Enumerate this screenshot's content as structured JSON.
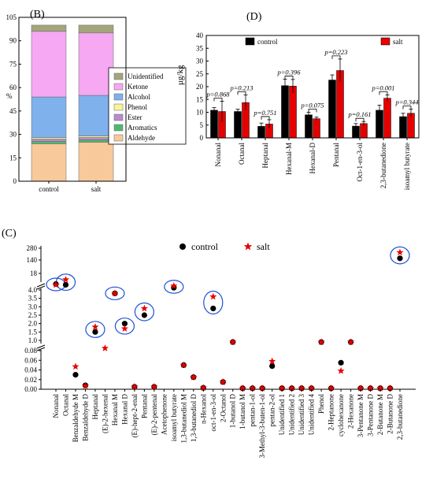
{
  "chart_data": [
    {
      "panel": "(B)",
      "type": "bar",
      "stacked": true,
      "ylabel": "%",
      "ylim": [
        0,
        105
      ],
      "yticks": [
        0,
        15,
        30,
        45,
        60,
        75,
        90,
        105
      ],
      "categories": [
        "control",
        "salt"
      ],
      "legend_position": "right",
      "series": [
        {
          "name": "Aldehyde",
          "color": "#f8c99b",
          "values": [
            24,
            25
          ]
        },
        {
          "name": "Aromatics",
          "color": "#4fb870",
          "values": [
            1.5,
            1.5
          ]
        },
        {
          "name": "Ester",
          "color": "#b98ad1",
          "values": [
            1.5,
            1.5
          ]
        },
        {
          "name": "Phenol",
          "color": "#f7f59a",
          "values": [
            1,
            1
          ]
        },
        {
          "name": "Alcohol",
          "color": "#7fb1ec",
          "values": [
            26,
            26
          ]
        },
        {
          "name": "Ketone",
          "color": "#f6a8f2",
          "values": [
            42,
            40
          ]
        },
        {
          "name": "Unidentified",
          "color": "#a4a57c",
          "values": [
            4,
            5
          ]
        }
      ]
    },
    {
      "panel": "(D)",
      "type": "bar",
      "ylabel": "μg/kg",
      "ylim": [
        0,
        40
      ],
      "yticks": [
        0,
        5,
        10,
        15,
        20,
        25,
        30,
        35,
        40
      ],
      "categories": [
        "Nonanal",
        "Octanal",
        "Heptanal",
        "Hexanal-M",
        "Hexanal-D",
        "Pentanal",
        "Oct-1-en-3-ol",
        "2,3-butanedione",
        "isoamyl butyrate"
      ],
      "series": [
        {
          "name": "control",
          "color": "#000000",
          "values": [
            10.8,
            10.3,
            4.5,
            20.4,
            9.0,
            22.6,
            4.6,
            10.8,
            8.3
          ],
          "errors": [
            1.0,
            0.9,
            1.3,
            2.5,
            1.0,
            2.0,
            1.0,
            2.0,
            1.3
          ]
        },
        {
          "name": "salt",
          "color": "#e60000",
          "values": [
            10.3,
            13.8,
            5.4,
            20.2,
            7.5,
            26.3,
            5.6,
            15.5,
            9.6
          ],
          "errors": [
            4.0,
            3.0,
            1.7,
            2.6,
            0.6,
            4.5,
            0.8,
            1.3,
            1.6
          ]
        }
      ],
      "pvalues": [
        "p=0.868",
        "p=0.213",
        "p=0.751",
        "p=0.396",
        "p=0.075",
        "p=0.223",
        "p=0.161",
        "p=0.001",
        "p=0.344"
      ]
    },
    {
      "panel": "(C)",
      "type": "scatter",
      "broken_axis": true,
      "yticks_low": [
        "0.00",
        "0.02",
        "0.04",
        "0.06",
        "0.08"
      ],
      "yticks_mid": [
        "1.0",
        "1.5",
        "2.0",
        "2.5",
        "3.0",
        "3.5",
        "4.0"
      ],
      "yticks_high": [
        "18",
        "140",
        "280"
      ],
      "categories": [
        "Nonanal",
        "Octanal",
        "Benzaldehyde M",
        "Benzaldehyde D",
        "Heptanal",
        "(E)-2-hexenal",
        "Hexanal M",
        "Hexanal D",
        "(E)-hept-2-enal",
        "Pentanal",
        "(E)-2-pentenal",
        "Acetophenone",
        "isoamyl butyrate",
        "1,3-butanediol M",
        "1,3-butanediol D",
        "n-Hexanol",
        "oct-1-en-3-ol",
        "2-Octanol",
        "1-butanol D",
        "1-butanol M",
        "pentan-1-ol",
        "3-Methyl-3-buten-1-ol",
        "pentan-2-ol",
        "Unidentified 1",
        "Unidentified 2",
        "Unidentified 3",
        "Unidentified 4",
        "Phenol",
        "2-Heptanone",
        "cyclohexanone",
        "2-Hexanone",
        "3-Pentanone M",
        "3-Pentanone D",
        "2-Butanone M",
        "2-Butanone D",
        "2,3-butanedione"
      ],
      "series": [
        {
          "name": "control",
          "color": "#000000",
          "marker": "circle",
          "values": [
            "10.8",
            "10.3",
            "0.030",
            "0.008",
            "1.5",
            "",
            "4.5",
            "2.0",
            "0.005",
            "2.5",
            "0.005",
            "",
            "8.3",
            "0.050",
            "0.025",
            "0.003",
            "2.9",
            "0.015",
            "0.9",
            "0.002",
            "0.002",
            "0.002",
            "0.048",
            "0.002",
            "0.002",
            "0.002",
            "0.002",
            "0.9",
            "0.002",
            "0.055",
            "0.9",
            "0.002",
            "0.002",
            "0.002",
            "0.002",
            "160"
          ]
        },
        {
          "name": "salt",
          "color": "#e60000",
          "marker": "star",
          "values": [
            "10.3",
            "13.8",
            "0.047",
            "0.007",
            "1.8",
            "0.085",
            "4.5",
            "1.7",
            "0.005",
            "2.9",
            "0.005",
            "",
            "9.6",
            "0.050",
            "0.025",
            "0.003",
            "3.6",
            "0.015",
            "0.9",
            "0.002",
            "0.002",
            "0.002",
            "0.058",
            "0.002",
            "0.002",
            "0.002",
            "0.002",
            "0.9",
            "0.002",
            "0.038",
            "0.9",
            "0.002",
            "0.002",
            "0.002",
            "0.002",
            "230"
          ]
        }
      ],
      "circled": [
        "Nonanal",
        "Octanal",
        "Heptanal",
        "Hexanal M",
        "Hexanal D",
        "Pentanal",
        "isoamyl butyrate",
        "oct-1-en-3-ol",
        "2,3-butanedione"
      ]
    }
  ]
}
